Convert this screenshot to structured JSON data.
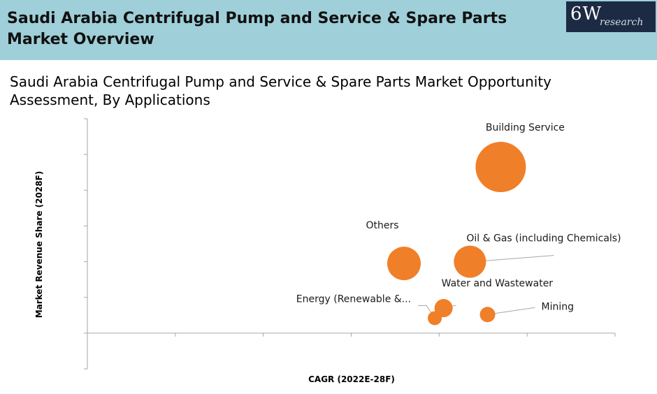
{
  "header": {
    "title": "Saudi Arabia Centrifugal Pump and Service & Spare Parts Market Overview",
    "logo_main": "6W",
    "logo_sub": "research"
  },
  "colors": {
    "header_bg": "#9fcfd9",
    "logo_bg": "#1c2a44",
    "bubble": "#f07f2a"
  },
  "chart_data": {
    "type": "bubble",
    "title": "Saudi Arabia Centrifugal Pump and Service & Spare Parts Market Opportunity Assessment, By Applications",
    "xlabel": "CAGR (2022E-28F)",
    "ylabel": "Market Revenue Share (2028F)",
    "xlim": [
      0,
      6
    ],
    "ylim": [
      -1,
      6
    ],
    "x_ticks": 6,
    "y_ticks": 7,
    "grid": false,
    "points": [
      {
        "name": "Building Service",
        "x": 4.7,
        "y": 4.65,
        "size": 36
      },
      {
        "name": "Others",
        "x": 3.6,
        "y": 1.95,
        "size": 24
      },
      {
        "name": "Oil & Gas (including Chemicals)",
        "x": 4.35,
        "y": 2.0,
        "size": 23
      },
      {
        "name": "Water and Wastewater",
        "x": 4.05,
        "y": 0.7,
        "size": 13
      },
      {
        "name": "Energy (Renewable &...",
        "x": 3.95,
        "y": 0.42,
        "size": 10
      },
      {
        "name": "Mining",
        "x": 4.55,
        "y": 0.52,
        "size": 11
      }
    ]
  }
}
